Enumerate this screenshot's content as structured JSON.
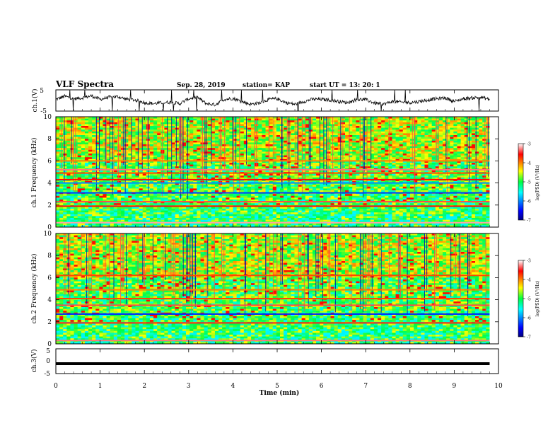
{
  "header": {
    "title": "VLF Spectra",
    "date": "Sep. 28, 2019",
    "station": "station= KAP",
    "start": "start  UT =   13: 20: 1"
  },
  "chart_data": [
    {
      "type": "line",
      "name": "ch1-waveform",
      "ylabel": "ch.1(V)",
      "ylim": [
        -5,
        5
      ],
      "yticks": [
        "5",
        "-5"
      ],
      "xlim": [
        0,
        10
      ],
      "x": [
        0,
        0.2,
        0.4,
        0.6,
        0.8,
        1.0,
        1.2,
        1.4,
        1.6,
        1.8,
        2.0,
        2.2,
        2.4,
        2.6,
        2.8,
        3.0,
        3.2,
        3.4,
        3.6,
        3.8,
        4.0,
        4.2,
        4.4,
        4.6,
        4.8,
        5.0,
        5.2,
        5.4,
        5.6,
        5.8,
        6.0,
        6.2,
        6.4,
        6.6,
        6.8,
        7.0,
        7.2,
        7.4,
        7.6,
        7.8,
        8.0,
        8.2,
        8.4,
        8.6,
        8.8,
        9.0,
        9.2,
        9.4,
        9.6,
        9.8
      ],
      "y": [
        0.5,
        2.0,
        0.8,
        1.2,
        2.2,
        0.5,
        1.5,
        1.8,
        0.6,
        0.2,
        -1.0,
        -1.5,
        -1.0,
        -0.8,
        -1.5,
        0.8,
        1.5,
        -1.5,
        -2.0,
        0.5,
        1.0,
        -0.5,
        -1.8,
        -1.2,
        0.5,
        0.8,
        -1.0,
        -1.8,
        -0.5,
        0.6,
        0.5,
        0.2,
        -0.5,
        -1.0,
        0.5,
        0.4,
        -1.2,
        -1.8,
        -0.5,
        -0.8,
        -1.0,
        -0.5,
        0.2,
        0.8,
        1.2,
        -0.5,
        0.8,
        1.2,
        1.5,
        0.5
      ]
    },
    {
      "type": "heatmap",
      "name": "ch1-spectrogram",
      "ylabel": "ch.1  Frequency  (kHz)",
      "ylim": [
        0,
        10
      ],
      "yticks": [
        "0",
        "2",
        "4",
        "6",
        "8",
        "10"
      ],
      "xlim": [
        0,
        10
      ],
      "colorbar": {
        "label": "log(PSD) (V²/Hz)",
        "range": [
          -7,
          -3
        ],
        "ticks": [
          "-3",
          "-4",
          "-5",
          "-6",
          "-7"
        ]
      },
      "bands_khz": [
        {
          "f": 0.4,
          "level": -3.2
        },
        {
          "f": 1.9,
          "level": -3.6
        },
        {
          "f": 2.3,
          "level": -3.4
        },
        {
          "f": 3.1,
          "level": -6.3
        },
        {
          "f": 4.0,
          "level": -6.0
        },
        {
          "f": 4.3,
          "level": -3.6
        },
        {
          "f": 4.9,
          "level": -3.8
        },
        {
          "f": 5.2,
          "level": -3.3
        },
        {
          "f": 6.0,
          "level": -4.0
        }
      ]
    },
    {
      "type": "heatmap",
      "name": "ch2-spectrogram",
      "ylabel": "ch.2  Frequency  (kHz)",
      "ylim": [
        0,
        10
      ],
      "yticks": [
        "0",
        "2",
        "4",
        "6",
        "8",
        "10"
      ],
      "xlim": [
        0,
        10
      ],
      "colorbar": {
        "label": "log(PSD) (V²/Hz)",
        "range": [
          -7,
          -3
        ],
        "ticks": [
          "-3",
          "-4",
          "-5",
          "-6",
          "-7"
        ]
      },
      "bands_khz": [
        {
          "f": 0.3,
          "level": -3.3
        },
        {
          "f": 1.9,
          "level": -3.5
        },
        {
          "f": 2.7,
          "level": -6.4
        },
        {
          "f": 3.5,
          "level": -3.4
        },
        {
          "f": 4.1,
          "level": -3.8
        },
        {
          "f": 4.9,
          "level": -4.0
        },
        {
          "f": 6.2,
          "level": -3.8
        }
      ]
    },
    {
      "type": "line",
      "name": "ch3-waveform",
      "ylabel": "ch.3(V)",
      "ylim": [
        -5,
        5
      ],
      "yticks": [
        "5",
        "0",
        "-5"
      ],
      "xlim": [
        0,
        10
      ],
      "x": [
        0,
        9.8
      ],
      "y": [
        -1,
        -1
      ],
      "xlabel": "Time  (min)",
      "xticks": [
        "0",
        "1",
        "2",
        "3",
        "4",
        "5",
        "6",
        "7",
        "8",
        "9",
        "10"
      ]
    }
  ]
}
